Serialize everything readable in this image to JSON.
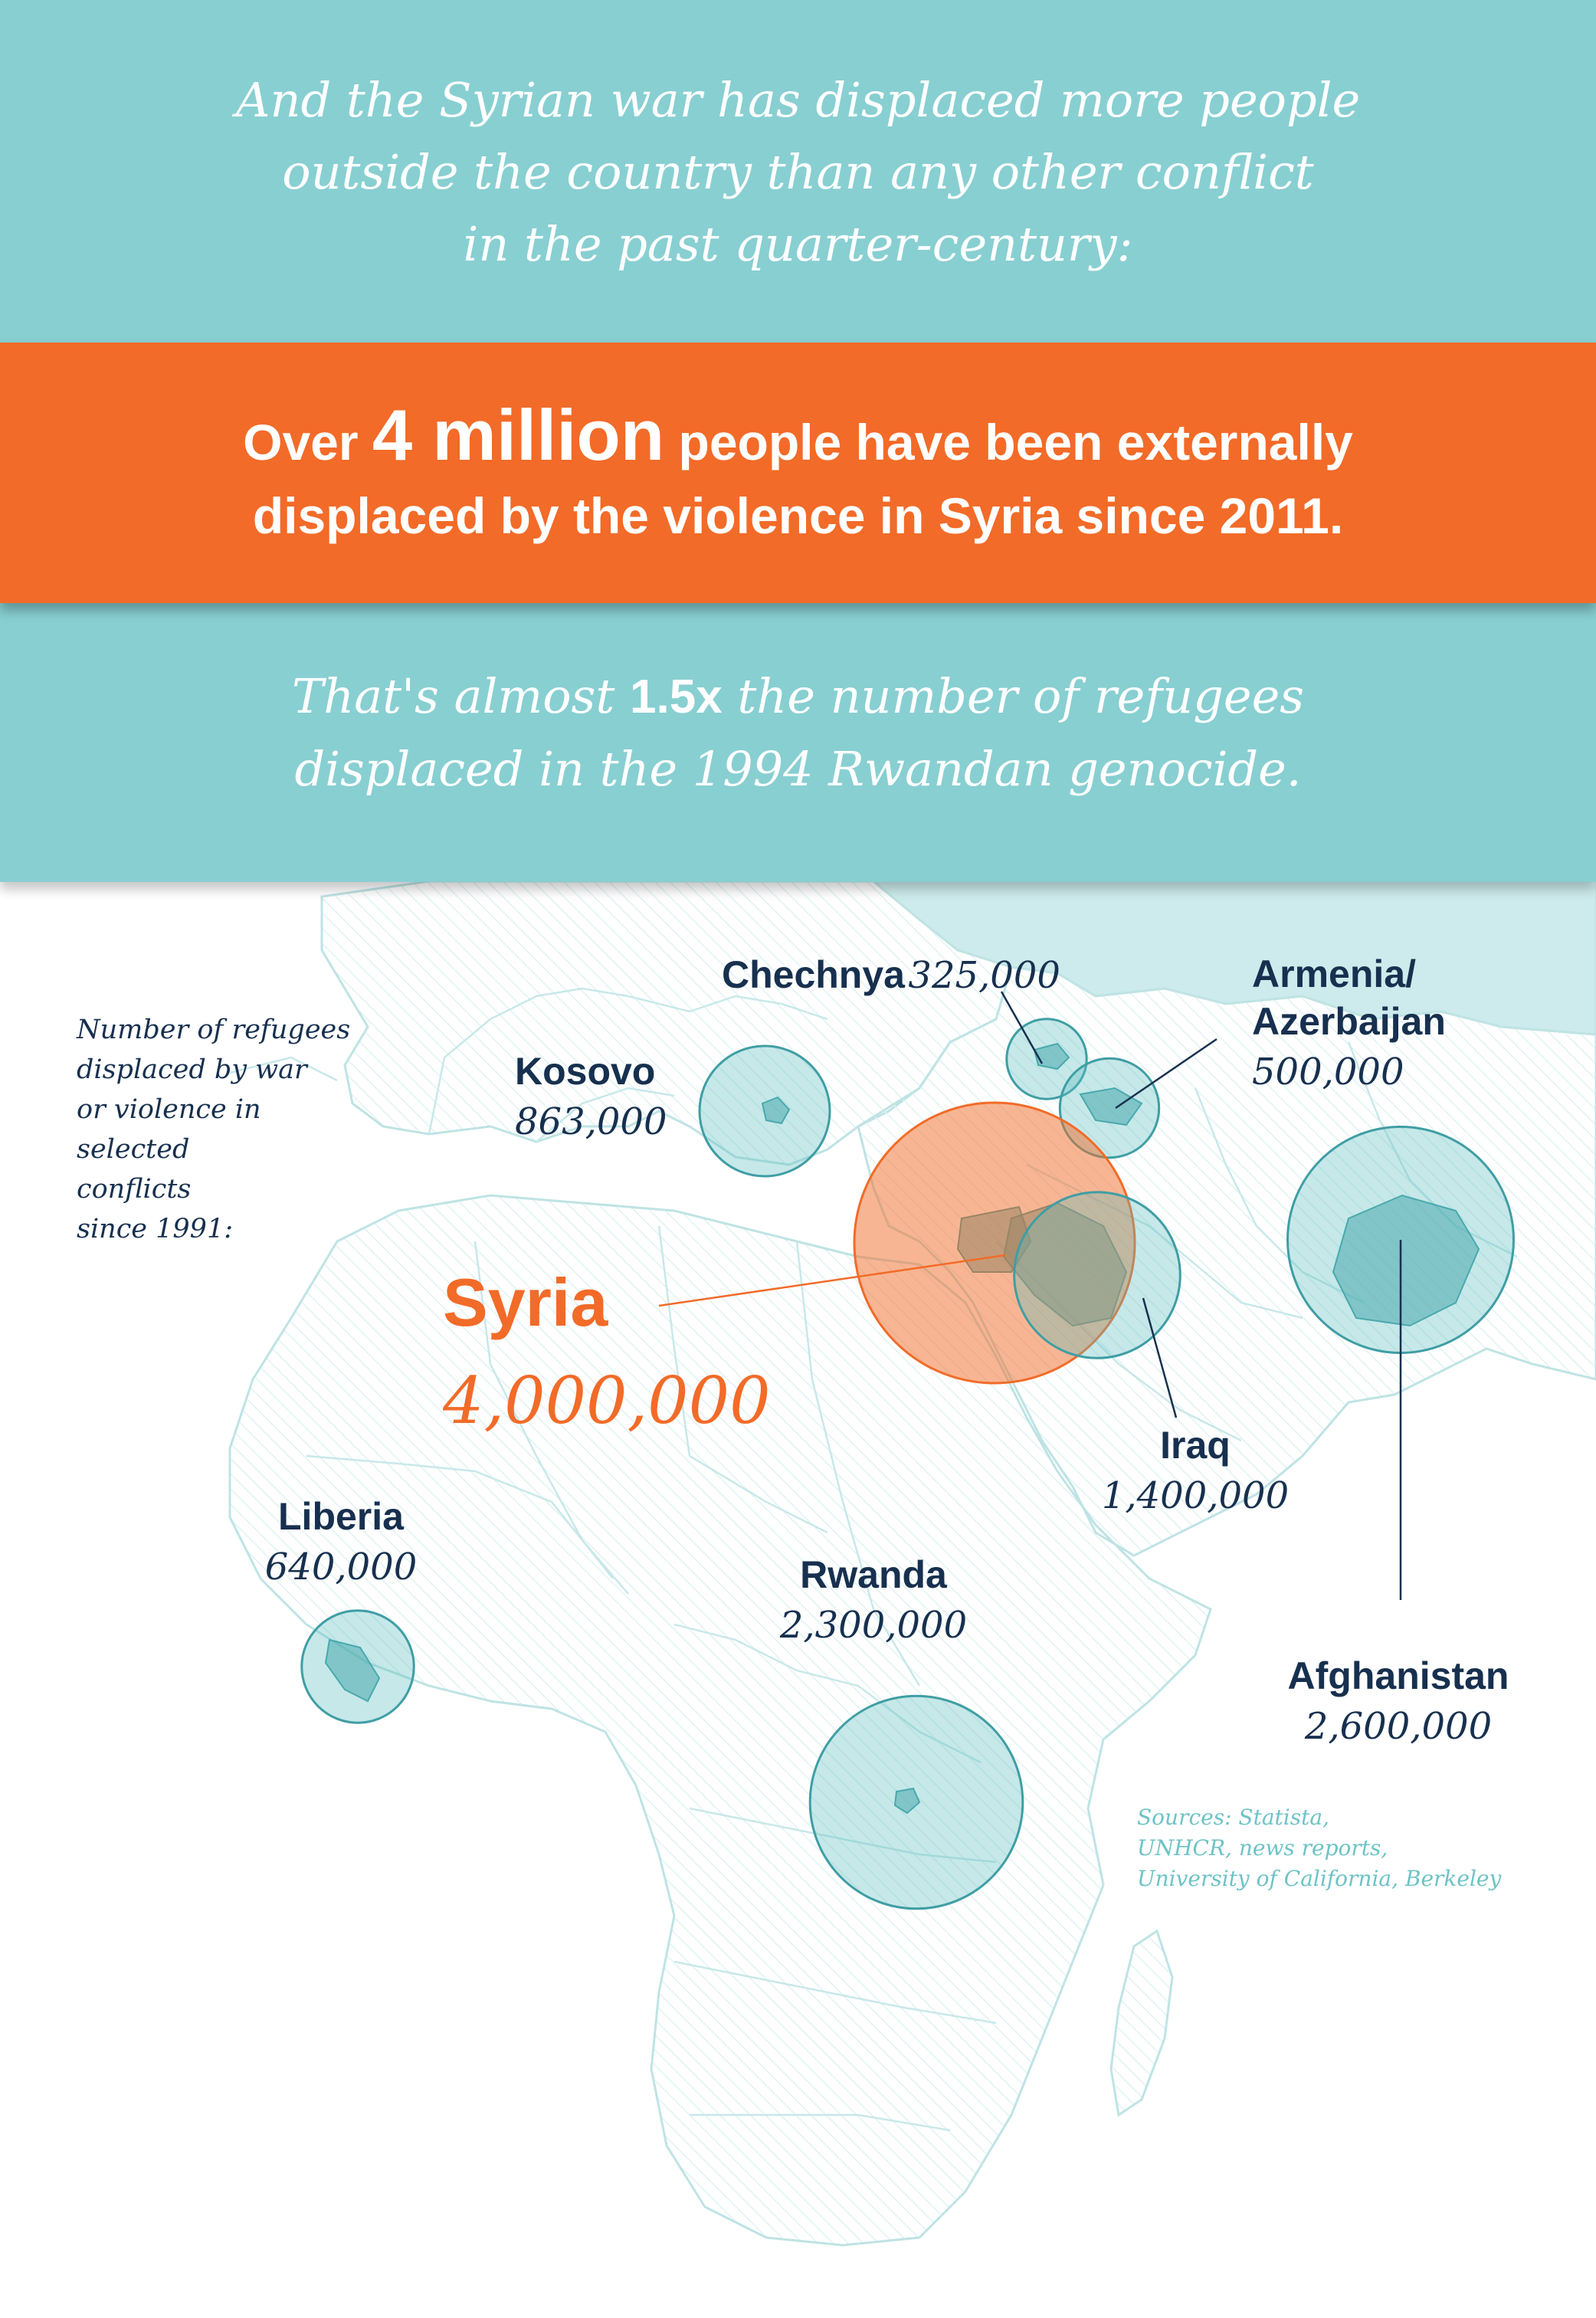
{
  "intro": {
    "lines": [
      "And the Syrian war has displaced more people",
      "outside the country than any other conflict",
      "in the past quarter-century:"
    ]
  },
  "headline": {
    "prefix": "Over ",
    "emphasis": "4 million",
    "line1_rest": " people have been externally",
    "line2": "displaced by the violence in Syria since 2011."
  },
  "comparison": {
    "prefix": "That's almost ",
    "emphasis": "1.5x",
    "line1_rest": " the number of refugees",
    "line2": "displaced in the 1994 Rwandan genocide."
  },
  "legend_note": {
    "lines": [
      "Number of refugees",
      "displaced by war",
      "or violence in",
      "selected",
      "conflicts",
      "since 1991:"
    ]
  },
  "conflicts": [
    {
      "name": "Chechnya",
      "refugees": "325,000",
      "value": 325000
    },
    {
      "name": "Armenia/",
      "name2": "Azerbaijan",
      "refugees": "500,000",
      "value": 500000
    },
    {
      "name": "Kosovo",
      "refugees": "863,000",
      "value": 863000
    },
    {
      "name": "Syria",
      "refugees": "4,000,000",
      "value": 4000000
    },
    {
      "name": "Iraq",
      "refugees": "1,400,000",
      "value": 1400000
    },
    {
      "name": "Afghanistan",
      "refugees": "2,600,000",
      "value": 2600000
    },
    {
      "name": "Liberia",
      "refugees": "640,000",
      "value": 640000
    },
    {
      "name": "Rwanda",
      "refugees": "2,300,000",
      "value": 2300000
    }
  ],
  "sources": {
    "lines": [
      "Sources: Statista,",
      "UNHCR, news reports,",
      "University of California, Berkeley"
    ]
  },
  "colors": {
    "teal_band": "#88cfd2",
    "orange": "#f26b28",
    "navy_text": "#17304f",
    "bubble_fill": "#5bbdc1",
    "bubble_stroke": "#3f9ea4",
    "map_line": "#bfe3e4",
    "russia_fill": "#cdebec"
  }
}
